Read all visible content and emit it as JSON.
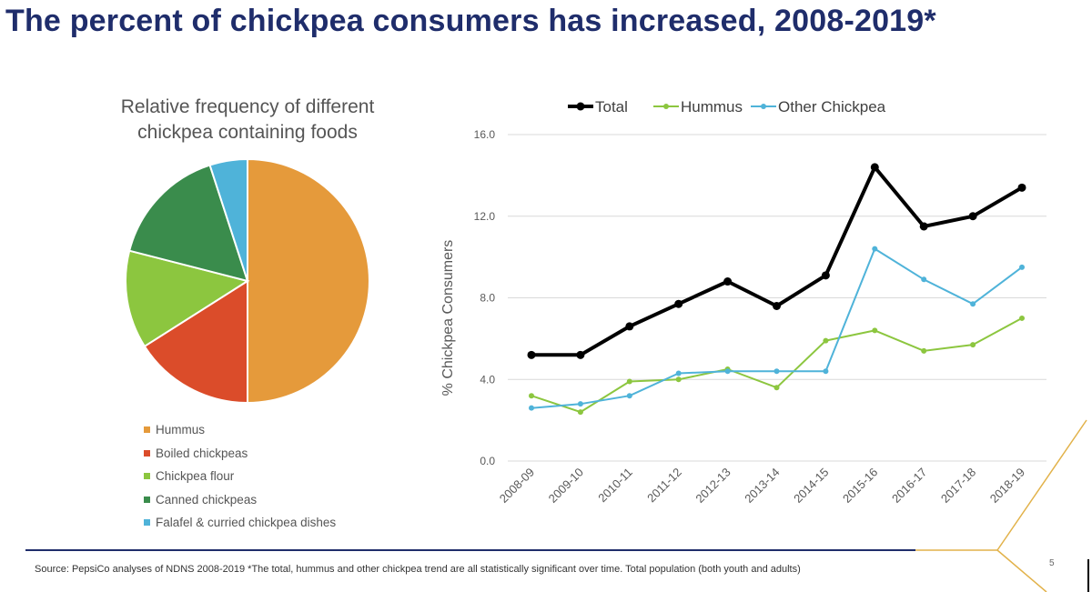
{
  "title": "The percent of chickpea consumers has increased, 2008-2019*",
  "source": "Source: PepsiCo analyses of NDNS 2008-2019  *The total, hummus and other chickpea trend are all statistically significant over time. Total population (both youth and adults)",
  "page_number": "5",
  "chart_data": [
    {
      "type": "pie",
      "title_lines": [
        "Relative frequency of different",
        "chickpea containing foods"
      ],
      "categories": [
        "Hummus",
        "Boiled chickpeas",
        "Chickpea flour",
        "Canned chickpeas",
        "Falafel & curried chickpea dishes"
      ],
      "values": [
        50,
        16,
        13,
        16,
        5
      ],
      "colors": [
        "#e59a3b",
        "#db4c2a",
        "#8cc63f",
        "#3a8c4c",
        "#4fb3d9"
      ],
      "legend_position": "bottom-left"
    },
    {
      "type": "line",
      "x": [
        "2008-09",
        "2009-10",
        "2010-11",
        "2011-12",
        "2012-13",
        "2013-14",
        "2014-15",
        "2015-16",
        "2016-17",
        "2017-18",
        "2018-19"
      ],
      "series": [
        {
          "name": "Total",
          "color": "#000000",
          "values": [
            5.2,
            5.2,
            6.6,
            7.7,
            8.8,
            7.6,
            9.1,
            14.4,
            11.5,
            12.0,
            13.4
          ]
        },
        {
          "name": "Hummus",
          "color": "#8cc63f",
          "values": [
            3.2,
            2.4,
            3.9,
            4.0,
            4.5,
            3.6,
            5.9,
            6.4,
            5.4,
            5.7,
            7.0
          ]
        },
        {
          "name": "Other Chickpea",
          "color": "#4fb3d9",
          "values": [
            2.6,
            2.8,
            3.2,
            4.3,
            4.4,
            4.4,
            4.4,
            10.4,
            8.9,
            7.7,
            9.5
          ]
        }
      ],
      "ylabel": "% Chickpea Consumers",
      "ylim": [
        0,
        16
      ],
      "yticks": [
        "0.0",
        "4.0",
        "8.0",
        "12.0",
        "16.0"
      ],
      "grid": true,
      "legend_position": "top"
    }
  ]
}
